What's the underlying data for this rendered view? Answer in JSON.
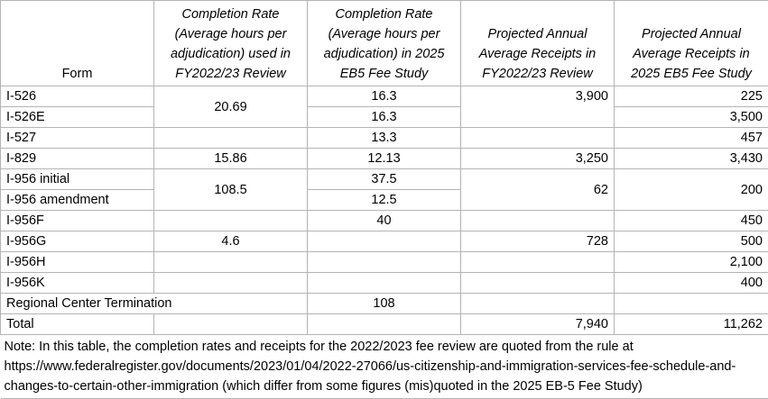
{
  "headers": {
    "form": "Form",
    "rate_2223": "Completion Rate (Average hours per adjudication) used in FY2022/23 Review",
    "rate_2025": "Completion Rate (Average hours per adjudication) in 2025 EB5 Fee Study",
    "receipts_2223": "Projected Annual Average Receipts in FY2022/23 Review",
    "receipts_2025": "Projected Annual Average Receipts in 2025 EB5 Fee Study"
  },
  "rows": [
    {
      "form": "I-526",
      "rate_2223": "20.69",
      "rate_2025": "16.3",
      "receipts_2223": "3,900",
      "receipts_2025": "225"
    },
    {
      "form": "I-526E",
      "rate_2025": "16.3",
      "receipts_2025": "3,500"
    },
    {
      "form": "I-527",
      "rate_2223": "",
      "rate_2025": "13.3",
      "receipts_2223": "",
      "receipts_2025": "457"
    },
    {
      "form": "I-829",
      "rate_2223": "15.86",
      "rate_2025": "12.13",
      "receipts_2223": "3,250",
      "receipts_2025": "3,430"
    },
    {
      "form": "I-956 initial",
      "rate_2223": "108.5",
      "rate_2025": "37.5",
      "receipts_2223": "62",
      "receipts_2025": "200"
    },
    {
      "form": "I-956 amendment",
      "rate_2025": "12.5"
    },
    {
      "form": "I-956F",
      "rate_2223": "",
      "rate_2025": "40",
      "receipts_2223": "",
      "receipts_2025": "450"
    },
    {
      "form": "I-956G",
      "rate_2223": "4.6",
      "rate_2025": "",
      "receipts_2223": "728",
      "receipts_2025": "500"
    },
    {
      "form": "I-956H",
      "rate_2223": "",
      "rate_2025": "",
      "receipts_2223": "",
      "receipts_2025": "2,100"
    },
    {
      "form": "I-956K",
      "rate_2223": "",
      "rate_2025": "",
      "receipts_2223": "",
      "receipts_2025": "400"
    },
    {
      "form": "Regional Center Termination",
      "rate_2025": "108",
      "receipts_2223": "",
      "receipts_2025": ""
    }
  ],
  "total": {
    "label": "Total",
    "receipts_2223": "7,940",
    "receipts_2025": "11,262"
  },
  "note": "Note: In this table, the completion rates and receipts for the 2022/2023 fee review are quoted from the rule at https://www.federalregister.gov/documents/2023/01/04/2022-27066/us-citizenship-and-immigration-services-fee-schedule-and-changes-to-certain-other-immigration (which differ from some figures (mis)quoted in the 2025 EB-5 Fee Study)"
}
